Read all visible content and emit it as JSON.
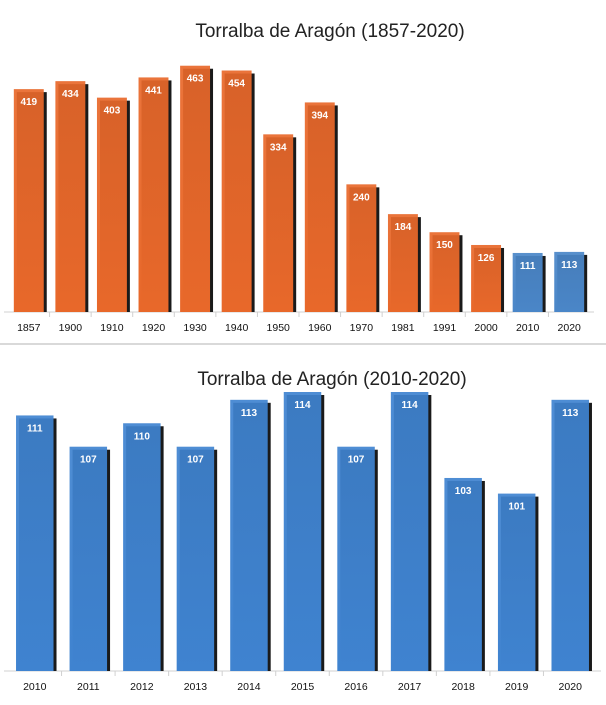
{
  "chart_data": [
    {
      "type": "bar",
      "title": "Torralba de Aragón (1857-2020)",
      "categories": [
        "1857",
        "1900",
        "1910",
        "1920",
        "1930",
        "1940",
        "1950",
        "1960",
        "1970",
        "1981",
        "1991",
        "2000",
        "2010",
        "2020"
      ],
      "values": [
        419,
        434,
        403,
        441,
        463,
        454,
        334,
        394,
        240,
        184,
        150,
        126,
        111,
        113
      ],
      "xlabel": "",
      "ylabel": "",
      "ylim": [
        0,
        470
      ],
      "grid": false,
      "colors": {
        "primary": "#E8682A",
        "highlight": "#4A86C8"
      },
      "highlight_categories": [
        "2010",
        "2020"
      ]
    },
    {
      "type": "bar",
      "title": "Torralba de Aragón (2010-2020)",
      "categories": [
        "2010",
        "2011",
        "2012",
        "2013",
        "2014",
        "2015",
        "2016",
        "2017",
        "2018",
        "2019",
        "2020"
      ],
      "values": [
        111,
        107,
        110,
        107,
        113,
        114,
        107,
        114,
        103,
        101,
        113
      ],
      "xlabel": "",
      "ylabel": "",
      "ylim": [
        78.3,
        114
      ],
      "grid": false,
      "colors": {
        "primary": "#3F83D0",
        "highlight": "#3F83D0"
      },
      "highlight_categories": []
    }
  ]
}
